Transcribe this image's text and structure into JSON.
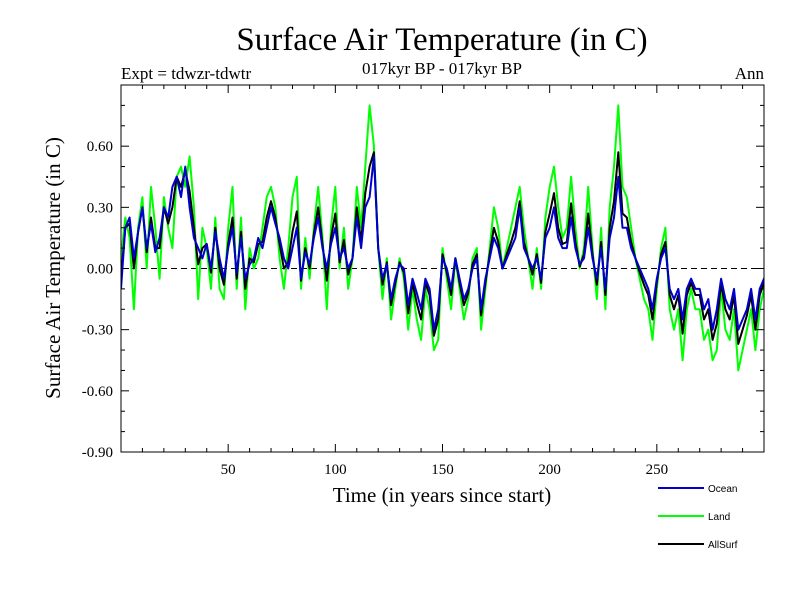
{
  "chart_data": {
    "type": "line",
    "title": "Surface Air Temperature (in C)",
    "subtitle": "017kyr BP - 017kyr BP",
    "experiment_label": "Expt = tdwzr-tdwtr",
    "period_label": "Ann",
    "xlabel": "Time (in years since start)",
    "ylabel": "Surface Air Temperature (in C)",
    "xlim": [
      0,
      300
    ],
    "ylim": [
      -0.9,
      0.9
    ],
    "x_ticks": [
      50,
      100,
      150,
      200,
      250
    ],
    "x_tick_labels": [
      "50",
      "100",
      "150",
      "200",
      "250"
    ],
    "y_ticks": [
      -0.9,
      -0.6,
      -0.3,
      0.0,
      0.3,
      0.6
    ],
    "y_tick_labels": [
      "-0.90",
      "-0.60",
      "-0.30",
      "0.00",
      "0.30",
      "0.60"
    ],
    "zero_line": true,
    "legend_position": "bottom-right",
    "series_x_start": 0,
    "series_x_step": 2,
    "series": [
      {
        "name": "Ocean",
        "color": "#0000cc",
        "values": [
          -0.1,
          0.2,
          0.25,
          0.05,
          0.18,
          0.3,
          0.1,
          0.22,
          0.08,
          0.15,
          0.3,
          0.25,
          0.4,
          0.45,
          0.35,
          0.5,
          0.3,
          0.15,
          0.1,
          0.05,
          0.12,
          0.0,
          0.18,
          0.05,
          -0.05,
          0.1,
          0.2,
          -0.02,
          0.15,
          -0.05,
          0.02,
          0.05,
          0.15,
          0.1,
          0.2,
          0.3,
          0.22,
          0.15,
          0.05,
          0.0,
          0.1,
          0.2,
          -0.05,
          0.08,
          0.02,
          0.15,
          0.25,
          0.1,
          0.0,
          0.12,
          0.2,
          0.05,
          0.1,
          0.0,
          0.05,
          0.25,
          0.1,
          0.3,
          0.35,
          0.55,
          0.1,
          -0.05,
          0.02,
          -0.15,
          -0.05,
          0.02,
          0.0,
          -0.18,
          -0.05,
          -0.12,
          -0.2,
          -0.05,
          -0.1,
          -0.3,
          -0.2,
          0.05,
          0.0,
          -0.1,
          0.05,
          -0.05,
          -0.15,
          -0.1,
          0.0,
          0.05,
          -0.2,
          -0.05,
          0.05,
          0.15,
          0.1,
          0.0,
          0.05,
          0.1,
          0.15,
          0.3,
          0.1,
          0.05,
          0.0,
          0.05,
          -0.05,
          0.15,
          0.2,
          0.3,
          0.15,
          0.1,
          0.1,
          0.25,
          0.1,
          0.02,
          0.05,
          0.2,
          0.05,
          -0.05,
          0.1,
          -0.1,
          0.15,
          0.25,
          0.45,
          0.2,
          0.2,
          0.1,
          0.05,
          0.0,
          -0.05,
          -0.1,
          -0.2,
          -0.05,
          0.05,
          0.1,
          -0.1,
          -0.15,
          -0.1,
          -0.25,
          -0.1,
          -0.05,
          -0.1,
          -0.1,
          -0.2,
          -0.15,
          -0.3,
          -0.2,
          -0.05,
          -0.15,
          -0.2,
          -0.1,
          -0.3,
          -0.25,
          -0.2,
          -0.1,
          -0.25,
          -0.1,
          -0.05,
          0.0,
          0.05,
          -0.15,
          0.0,
          -0.2,
          -0.1,
          -0.15,
          -0.05,
          -0.02,
          -0.1,
          -0.1,
          -0.2,
          -0.15,
          0.0,
          0.05,
          0.1,
          0.2,
          0.15,
          0.0,
          -0.1,
          -0.2,
          -0.3,
          -0.2,
          -0.25,
          -0.35,
          -0.4,
          -0.3,
          -0.2,
          -0.05,
          -0.1,
          -0.05,
          0.0,
          -0.25,
          -0.3,
          -0.35,
          -0.3,
          -0.45,
          -0.55
        ]
      },
      {
        "name": "Land",
        "color": "#00ff00",
        "values": [
          0.05,
          0.25,
          0.15,
          -0.2,
          0.2,
          0.35,
          0.0,
          0.4,
          0.2,
          -0.05,
          0.35,
          0.2,
          0.1,
          0.45,
          0.5,
          0.4,
          0.55,
          0.3,
          -0.15,
          0.2,
          0.1,
          -0.1,
          0.25,
          -0.1,
          -0.15,
          0.2,
          0.4,
          -0.1,
          0.25,
          -0.2,
          0.1,
          0.0,
          0.05,
          0.2,
          0.35,
          0.4,
          0.3,
          0.05,
          -0.1,
          0.1,
          0.35,
          0.45,
          -0.1,
          0.15,
          -0.05,
          0.2,
          0.4,
          0.15,
          -0.2,
          0.2,
          0.4,
          0.0,
          0.2,
          -0.1,
          0.05,
          0.4,
          0.2,
          0.5,
          0.8,
          0.6,
          0.1,
          -0.15,
          0.05,
          -0.25,
          -0.1,
          0.05,
          -0.05,
          -0.3,
          -0.1,
          -0.25,
          -0.35,
          -0.1,
          -0.2,
          -0.4,
          -0.35,
          0.1,
          -0.05,
          -0.2,
          0.05,
          -0.1,
          -0.25,
          -0.15,
          0.05,
          0.1,
          -0.3,
          -0.1,
          0.1,
          0.3,
          0.2,
          0.0,
          0.1,
          0.2,
          0.3,
          0.4,
          0.2,
          0.05,
          -0.1,
          0.1,
          -0.1,
          0.25,
          0.4,
          0.5,
          0.3,
          0.15,
          0.2,
          0.45,
          0.2,
          0.0,
          0.1,
          0.4,
          0.1,
          -0.15,
          0.2,
          -0.2,
          0.3,
          0.5,
          0.8,
          0.4,
          0.35,
          0.2,
          0.05,
          -0.05,
          -0.15,
          -0.2,
          -0.35,
          -0.1,
          0.1,
          0.2,
          -0.2,
          -0.3,
          -0.2,
          -0.45,
          -0.2,
          -0.1,
          -0.2,
          -0.2,
          -0.35,
          -0.3,
          -0.45,
          -0.4,
          -0.1,
          -0.3,
          -0.35,
          -0.2,
          -0.5,
          -0.4,
          -0.3,
          -0.2,
          -0.4,
          -0.2,
          -0.1,
          0.0,
          0.1,
          -0.3,
          0.05,
          -0.35,
          -0.15,
          -0.25,
          -0.05,
          -0.05,
          -0.15,
          -0.2,
          -0.35,
          -0.25,
          0.0,
          0.1,
          0.2,
          0.35,
          0.25,
          0.0,
          -0.2,
          -0.35,
          -0.45,
          -0.3,
          -0.4,
          -0.5,
          -0.55,
          -0.45,
          -0.3,
          -0.1,
          -0.2,
          -0.1,
          0.0,
          -0.4,
          -0.45,
          -0.5,
          -0.45,
          -0.6,
          -0.65
        ]
      },
      {
        "name": "AllSurf",
        "color": "#000000",
        "values": [
          -0.05,
          0.2,
          0.22,
          0.0,
          0.18,
          0.3,
          0.08,
          0.25,
          0.1,
          0.1,
          0.3,
          0.22,
          0.3,
          0.45,
          0.4,
          0.48,
          0.38,
          0.2,
          0.02,
          0.1,
          0.12,
          -0.02,
          0.2,
          0.0,
          -0.08,
          0.12,
          0.25,
          -0.05,
          0.18,
          -0.1,
          0.05,
          0.03,
          0.12,
          0.13,
          0.25,
          0.33,
          0.25,
          0.12,
          0.0,
          0.03,
          0.18,
          0.28,
          -0.06,
          0.1,
          0.0,
          0.17,
          0.3,
          0.12,
          -0.06,
          0.15,
          0.27,
          0.03,
          0.14,
          -0.03,
          0.05,
          0.3,
          0.13,
          0.37,
          0.5,
          0.57,
          0.1,
          -0.08,
          0.03,
          -0.18,
          -0.07,
          0.03,
          -0.02,
          -0.22,
          -0.07,
          -0.17,
          -0.25,
          -0.07,
          -0.13,
          -0.33,
          -0.25,
          0.07,
          -0.02,
          -0.13,
          0.05,
          -0.07,
          -0.18,
          -0.12,
          0.02,
          0.07,
          -0.23,
          -0.07,
          0.07,
          0.2,
          0.13,
          0.0,
          0.07,
          0.13,
          0.2,
          0.33,
          0.13,
          0.05,
          -0.03,
          0.07,
          -0.07,
          0.18,
          0.27,
          0.37,
          0.2,
          0.12,
          0.13,
          0.32,
          0.13,
          0.01,
          0.07,
          0.27,
          0.07,
          -0.08,
          0.13,
          -0.13,
          0.2,
          0.33,
          0.57,
          0.27,
          0.25,
          0.13,
          0.05,
          -0.02,
          -0.08,
          -0.13,
          -0.25,
          -0.07,
          0.07,
          0.13,
          -0.13,
          -0.2,
          -0.13,
          -0.32,
          -0.13,
          -0.07,
          -0.13,
          -0.13,
          -0.25,
          -0.2,
          -0.35,
          -0.27,
          -0.07,
          -0.2,
          -0.25,
          -0.13,
          -0.37,
          -0.3,
          -0.23,
          -0.13,
          -0.3,
          -0.13,
          -0.07,
          0.0,
          0.07,
          -0.2,
          0.02,
          -0.25,
          -0.12,
          -0.18,
          -0.05,
          -0.03,
          -0.12,
          -0.13,
          -0.25,
          -0.18,
          0.0,
          0.07,
          0.13,
          0.25,
          0.18,
          0.0,
          -0.13,
          -0.25,
          -0.35,
          -0.23,
          -0.3,
          -0.4,
          -0.45,
          -0.35,
          -0.23,
          -0.07,
          -0.13,
          -0.07,
          0.0,
          -0.3,
          -0.35,
          -0.4,
          -0.35,
          -0.5,
          -0.58
        ]
      }
    ]
  }
}
